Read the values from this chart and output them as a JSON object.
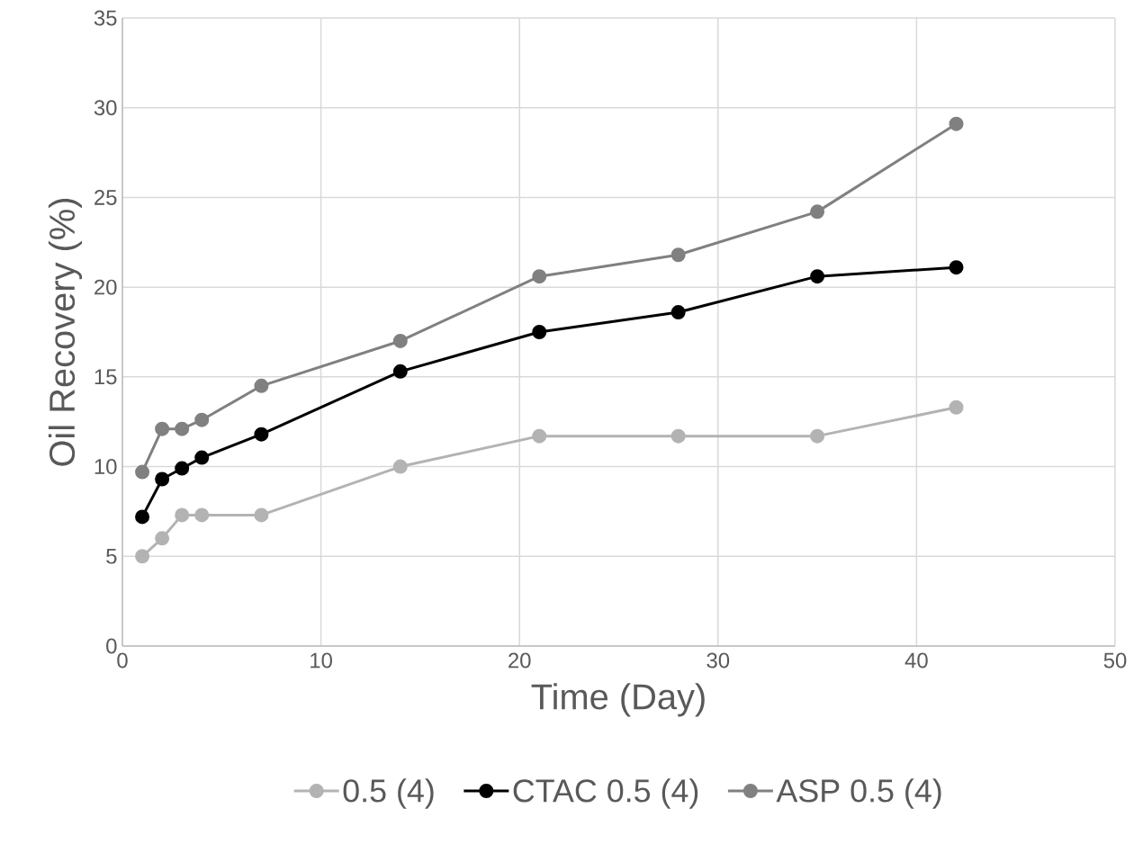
{
  "chart_data": {
    "type": "line",
    "xlabel": "Time (Day)",
    "ylabel": "Oil Recovery (%)",
    "x": [
      1,
      2,
      3,
      4,
      7,
      14,
      21,
      28,
      35,
      42
    ],
    "series": [
      {
        "name": "0.5 (4)",
        "color": "#b3b3b3",
        "values": [
          5.0,
          6.0,
          7.3,
          7.3,
          7.3,
          10.0,
          11.7,
          11.7,
          11.7,
          13.3
        ]
      },
      {
        "name": "CTAC 0.5 (4)",
        "color": "#000000",
        "values": [
          7.2,
          9.3,
          9.9,
          10.5,
          11.8,
          15.3,
          17.5,
          18.6,
          20.6,
          21.1
        ]
      },
      {
        "name": "ASP 0.5 (4)",
        "color": "#808080",
        "values": [
          9.7,
          12.1,
          12.1,
          12.6,
          14.5,
          17.0,
          20.6,
          21.8,
          24.2,
          29.1
        ]
      }
    ],
    "xlim": [
      0,
      50
    ],
    "xticks": [
      0,
      10,
      20,
      30,
      40,
      50
    ],
    "ylim": [
      0,
      35
    ],
    "yticks": [
      0,
      5,
      10,
      15,
      20,
      25,
      30,
      35
    ],
    "grid": true,
    "legend": "bottom",
    "marker": "circle",
    "line_style": "solid"
  }
}
